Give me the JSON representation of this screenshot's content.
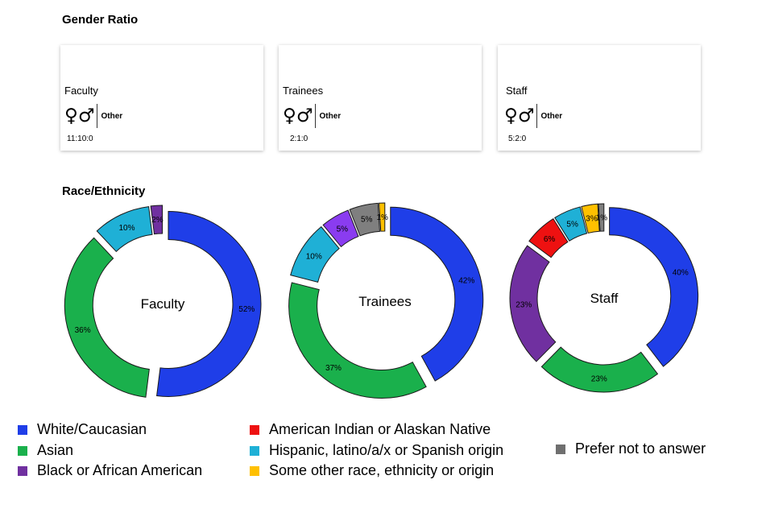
{
  "gender_section": {
    "title": "Gender Ratio",
    "other_label": "Other",
    "female_symbol": "♀",
    "male_symbol": "♂",
    "cards": [
      {
        "label": "Faculty",
        "ratio": "11:10:0"
      },
      {
        "label": "Trainees",
        "ratio": "2:1:0"
      },
      {
        "label": "Staff",
        "ratio": "5:2:0"
      }
    ]
  },
  "race_section": {
    "title": "Race/Ethnicity"
  },
  "chart_data": [
    {
      "type": "pie",
      "center_label": "Faculty",
      "categories": [
        "White/Caucasian",
        "Asian",
        "Hispanic, latino/a/x or Spanish origin",
        "Black or African American"
      ],
      "values": [
        52,
        36,
        10,
        2
      ],
      "labels": [
        "52%",
        "36%",
        "10%",
        "2%"
      ],
      "colors": [
        "#1f3ee8",
        "#1ab04c",
        "#1fb0d6",
        "#7030a0"
      ],
      "donut": true
    },
    {
      "type": "pie",
      "center_label": "Trainees",
      "categories": [
        "White/Caucasian",
        "Asian",
        "Hispanic, latino/a/x or Spanish origin",
        "Black or African American",
        "Prefer not to answer",
        "Some other race, ethnicity or origin"
      ],
      "values": [
        42,
        37,
        10,
        5,
        5,
        1
      ],
      "labels": [
        "42%",
        "37%",
        "10%",
        "5%",
        "5%",
        "1%"
      ],
      "colors": [
        "#1f3ee8",
        "#1ab04c",
        "#1fb0d6",
        "#8a3cf0",
        "#7f7f7f",
        "#ffc000"
      ],
      "donut": true
    },
    {
      "type": "pie",
      "center_label": "Staff",
      "categories": [
        "White/Caucasian",
        "Asian",
        "Black or African American",
        "American Indian or Alaskan Native",
        "Hispanic, latino/a/x or Spanish origin",
        "Some other race, ethnicity or origin",
        "Prefer not to answer"
      ],
      "values": [
        40,
        23,
        23,
        6,
        5,
        3,
        1
      ],
      "labels": [
        "40%",
        "23%",
        "23%",
        "6%",
        "5%",
        "3%",
        "1%"
      ],
      "colors": [
        "#1f3ee8",
        "#1ab04c",
        "#7030a0",
        "#ee1111",
        "#1fb0d6",
        "#ffc000",
        "#7f7f7f"
      ],
      "donut": true
    }
  ],
  "legend": [
    {
      "label": "White/Caucasian",
      "color": "#1f3ee8"
    },
    {
      "label": "Asian",
      "color": "#1ab04c"
    },
    {
      "label": "Black or African American",
      "color": "#7030a0"
    },
    {
      "label": "American Indian or Alaskan Native",
      "color": "#ee1111"
    },
    {
      "label": "Hispanic, latino/a/x or Spanish origin",
      "color": "#1fb0d6"
    },
    {
      "label": "Some other race, ethnicity or origin",
      "color": "#ffc000"
    },
    {
      "label": "Prefer not to answer",
      "color": "#6f6f6f"
    }
  ]
}
